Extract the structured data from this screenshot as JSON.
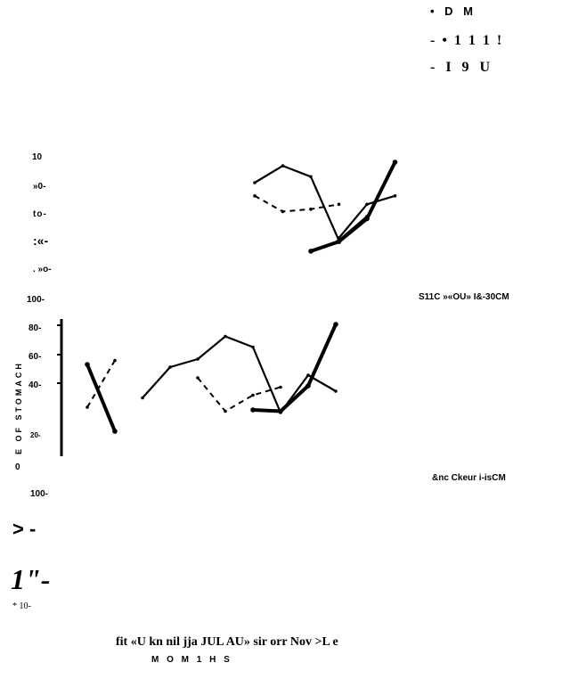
{
  "legend": {
    "line1": "• D M",
    "line2": "- • 1 1 1 !",
    "line3": "- I 9 U"
  },
  "top_axis": {
    "tick_10": "10",
    "tick_80": "»0-",
    "tick_60": "to-",
    "tick_40": ":«-",
    "tick_20": ". »o-"
  },
  "middle_axis": {
    "ylabel": "E OF STOMACH",
    "tick_100": "100-",
    "tick_80": "80-",
    "tick_60": "60-",
    "tick_40": "40-",
    "tick_20": "20-",
    "tick_0": "0"
  },
  "panel_labels": {
    "middle": "S11C »«OU» I&-30CM",
    "bottom": "&nc Ckeur i-isCM"
  },
  "bottom_axis": {
    "tick_100": "100-",
    "tick_a": "> -",
    "tick_b": "1\"-",
    "tick_10": "* 10-"
  },
  "x_axis": {
    "months_row": "fit «U kn nil jja JUL AU» sir orr Nov >L e",
    "xlabel": "M O M 1 H S"
  },
  "colors": {
    "ink": "#000000",
    "background": "#ffffff"
  },
  "chart_data": [
    {
      "type": "line",
      "panel": "top",
      "ylim": [
        0,
        100
      ],
      "x": [
        5,
        6,
        7,
        8,
        9,
        10,
        11
      ],
      "series": [
        {
          "style": "thin-solid",
          "values": [
            80,
            94,
            85,
            32,
            52,
            null,
            null
          ]
        },
        {
          "style": "dashed",
          "values": [
            69,
            56,
            58,
            62,
            null,
            null,
            null
          ]
        },
        {
          "style": "thick-solid",
          "values": [
            null,
            null,
            23,
            31,
            50,
            97,
            null
          ]
        },
        {
          "style": "medium-solid",
          "values": [
            null,
            null,
            null,
            34,
            62,
            69,
            null
          ]
        }
      ]
    },
    {
      "type": "line",
      "panel": "middle",
      "ylim": [
        0,
        100
      ],
      "x": [
        1,
        2,
        3,
        4,
        5,
        6,
        7,
        8,
        9,
        10
      ],
      "series": [
        {
          "style": "thick-solid",
          "values": [
            70,
            20,
            null,
            null,
            null,
            null,
            36,
            35,
            54,
            100
          ]
        },
        {
          "style": "dashed",
          "values": [
            38,
            73,
            null,
            null,
            60,
            35,
            47,
            53,
            null,
            null
          ]
        },
        {
          "style": "thin-solid",
          "values": [
            null,
            null,
            45,
            68,
            74,
            91,
            83,
            34,
            62,
            50
          ]
        }
      ]
    }
  ]
}
